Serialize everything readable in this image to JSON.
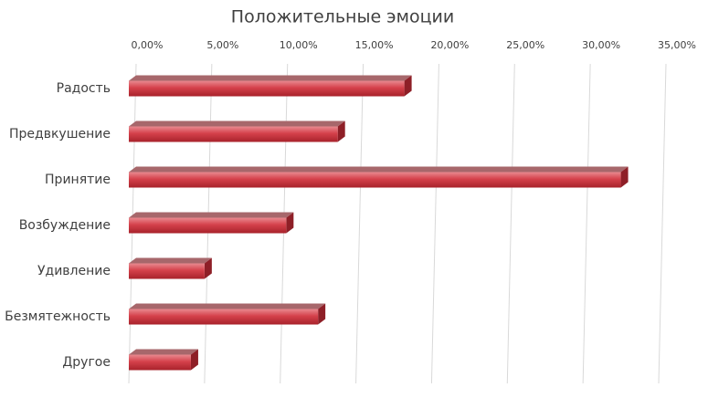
{
  "chart_data": {
    "type": "bar",
    "orientation": "horizontal",
    "title": "Положительные эмоции",
    "categories": [
      "Радость",
      "Предвкушение",
      "Принятие",
      "Возбуждение",
      "Удивление",
      "Безмятежность",
      "Другое"
    ],
    "values": [
      18.2,
      13.8,
      32.5,
      10.4,
      5.0,
      12.5,
      4.1
    ],
    "color": "#c8323c",
    "xlim": [
      0,
      35
    ],
    "xticks": [
      {
        "value": 0,
        "label": "0,00%"
      },
      {
        "value": 5,
        "label": "5,00%"
      },
      {
        "value": 10,
        "label": "10,00%"
      },
      {
        "value": 15,
        "label": "15,00%"
      },
      {
        "value": 20,
        "label": "20,00%"
      },
      {
        "value": 25,
        "label": "25,00%"
      },
      {
        "value": 30,
        "label": "30,00%"
      },
      {
        "value": 35,
        "label": "35,00%"
      }
    ],
    "grid": true
  }
}
